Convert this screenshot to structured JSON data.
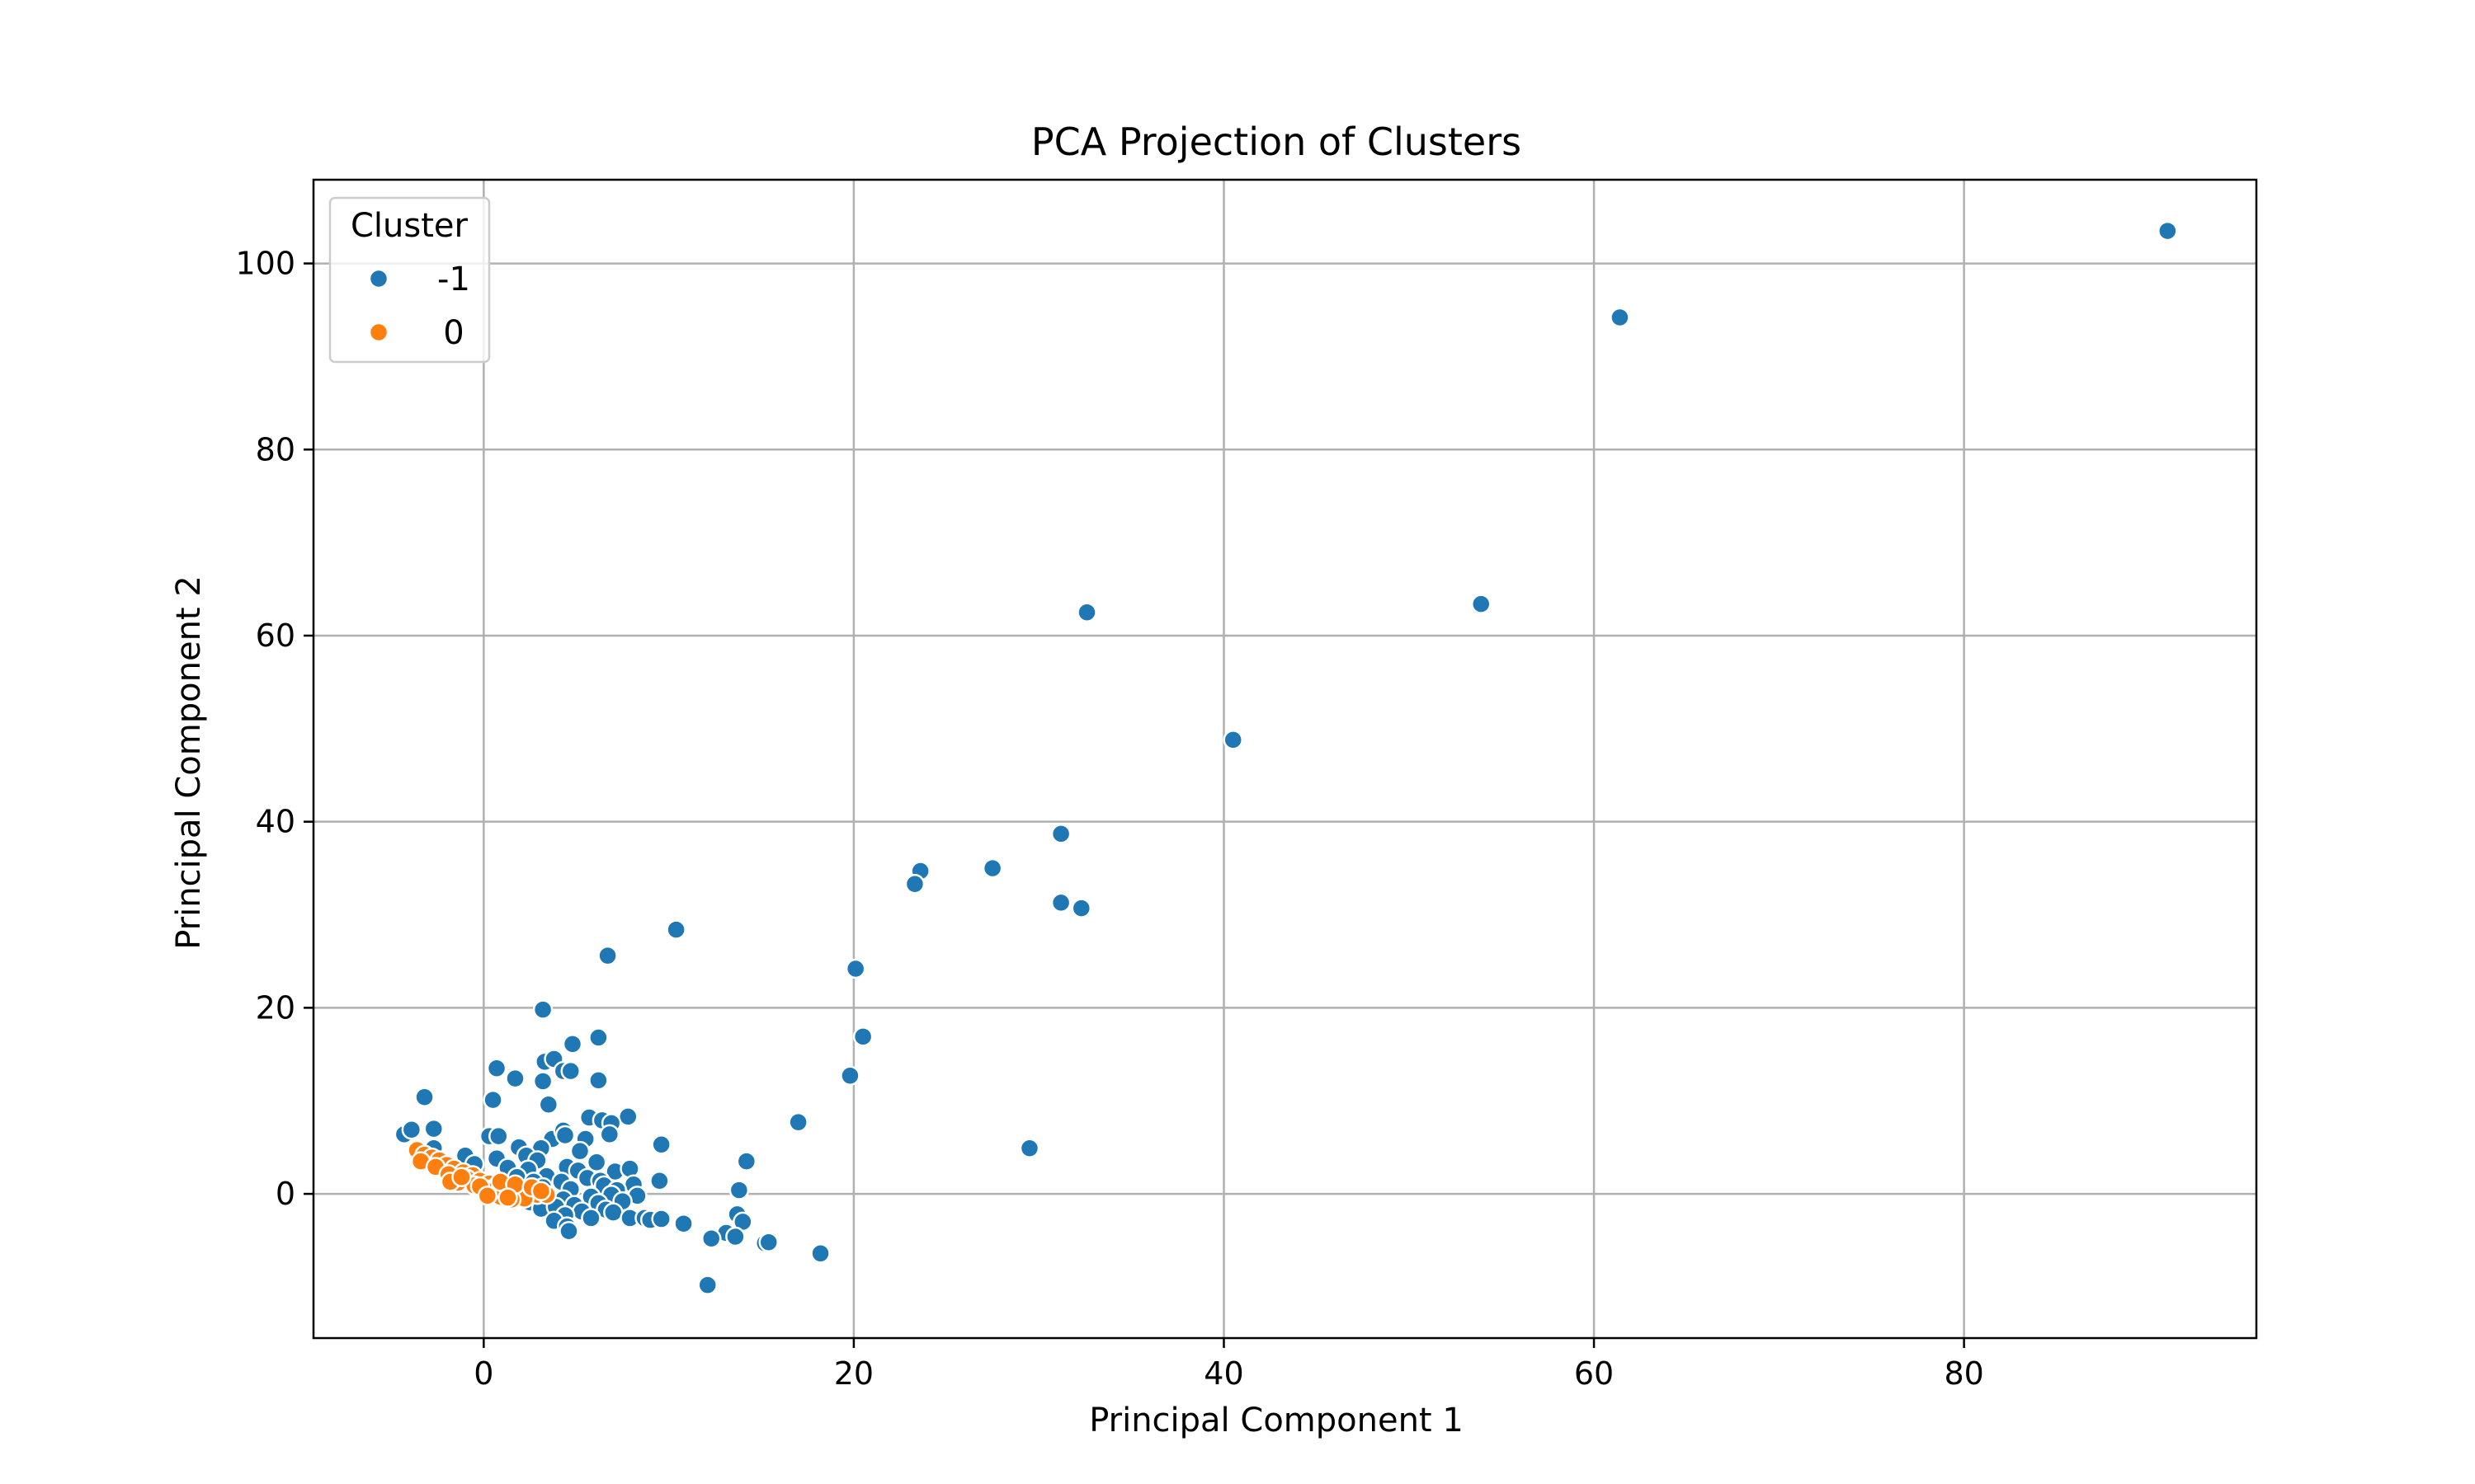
{
  "chart_data": {
    "type": "scatter",
    "title": "PCA Projection of Clusters",
    "xlabel": "Principal Component 1",
    "ylabel": "Principal Component 2",
    "xlim": [
      -9.2,
      95.8
    ],
    "ylim": [
      -15.5,
      109
    ],
    "xticks": [
      0,
      20,
      40,
      60,
      80
    ],
    "yticks": [
      0,
      20,
      40,
      60,
      80,
      100
    ],
    "grid": true,
    "legend": {
      "title": "Cluster",
      "position": "top-left"
    },
    "series": [
      {
        "name": "-1",
        "color": "#1f77b4",
        "points": [
          [
            91.0,
            103.5
          ],
          [
            61.4,
            94.2
          ],
          [
            53.9,
            63.4
          ],
          [
            32.6,
            62.5
          ],
          [
            40.5,
            48.8
          ],
          [
            31.2,
            38.7
          ],
          [
            27.5,
            35.0
          ],
          [
            23.6,
            34.7
          ],
          [
            23.3,
            33.3
          ],
          [
            31.2,
            31.3
          ],
          [
            32.3,
            30.7
          ],
          [
            10.4,
            28.4
          ],
          [
            6.7,
            25.6
          ],
          [
            20.1,
            24.2
          ],
          [
            3.2,
            19.8
          ],
          [
            20.5,
            16.9
          ],
          [
            6.2,
            16.8
          ],
          [
            4.8,
            16.1
          ],
          [
            3.3,
            14.2
          ],
          [
            3.8,
            14.5
          ],
          [
            0.7,
            13.5
          ],
          [
            4.3,
            13.2
          ],
          [
            4.7,
            13.2
          ],
          [
            1.7,
            12.4
          ],
          [
            3.2,
            12.1
          ],
          [
            6.2,
            12.2
          ],
          [
            19.8,
            12.7
          ],
          [
            -3.2,
            10.4
          ],
          [
            0.5,
            10.1
          ],
          [
            3.5,
            9.6
          ],
          [
            17.0,
            7.7
          ],
          [
            5.7,
            8.2
          ],
          [
            6.4,
            7.9
          ],
          [
            7.8,
            8.3
          ],
          [
            6.9,
            7.6
          ],
          [
            -2.7,
            7.0
          ],
          [
            -4.3,
            6.4
          ],
          [
            -3.9,
            6.9
          ],
          [
            0.3,
            6.2
          ],
          [
            0.8,
            6.2
          ],
          [
            3.7,
            5.9
          ],
          [
            4.3,
            6.8
          ],
          [
            4.4,
            6.3
          ],
          [
            5.5,
            5.9
          ],
          [
            6.8,
            6.4
          ],
          [
            9.6,
            5.3
          ],
          [
            29.5,
            4.9
          ],
          [
            -2.7,
            4.9
          ],
          [
            1.9,
            5.0
          ],
          [
            3.1,
            4.9
          ],
          [
            5.2,
            4.6
          ],
          [
            14.2,
            3.5
          ],
          [
            -1.0,
            4.1
          ],
          [
            0.7,
            3.8
          ],
          [
            2.3,
            4.1
          ],
          [
            2.9,
            3.6
          ],
          [
            6.1,
            3.4
          ],
          [
            4.5,
            2.9
          ],
          [
            -0.5,
            3.2
          ],
          [
            1.3,
            2.8
          ],
          [
            2.4,
            2.6
          ],
          [
            5.1,
            2.5
          ],
          [
            7.1,
            2.4
          ],
          [
            7.9,
            2.7
          ],
          [
            -1.8,
            1.5
          ],
          [
            1.8,
            1.8
          ],
          [
            3.4,
            1.9
          ],
          [
            5.6,
            1.7
          ],
          [
            6.3,
            1.4
          ],
          [
            9.5,
            1.4
          ],
          [
            -0.2,
            1.2
          ],
          [
            2.7,
            1.3
          ],
          [
            4.2,
            1.3
          ],
          [
            6.5,
            0.9
          ],
          [
            8.1,
            1.0
          ],
          [
            13.8,
            0.4
          ],
          [
            0.4,
            0.5
          ],
          [
            3.2,
            0.7
          ],
          [
            4.7,
            0.5
          ],
          [
            7.2,
            0.4
          ],
          [
            8.3,
            -0.2
          ],
          [
            1.5,
            -0.4
          ],
          [
            4.3,
            -0.6
          ],
          [
            5.8,
            -0.3
          ],
          [
            6.9,
            -0.1
          ],
          [
            2.5,
            -0.9
          ],
          [
            4.9,
            -1.2
          ],
          [
            6.2,
            -1.0
          ],
          [
            7.5,
            -0.8
          ],
          [
            3.1,
            -1.6
          ],
          [
            3.9,
            -1.4
          ],
          [
            5.3,
            -1.9
          ],
          [
            6.6,
            -1.7
          ],
          [
            7.0,
            -2.0
          ],
          [
            13.7,
            -2.2
          ],
          [
            4.4,
            -2.3
          ],
          [
            5.8,
            -2.6
          ],
          [
            7.9,
            -2.6
          ],
          [
            8.7,
            -2.6
          ],
          [
            9.0,
            -2.8
          ],
          [
            9.6,
            -2.7
          ],
          [
            3.8,
            -2.9
          ],
          [
            10.8,
            -3.2
          ],
          [
            14.0,
            -3.0
          ],
          [
            4.5,
            -3.5
          ],
          [
            4.6,
            -4.0
          ],
          [
            13.1,
            -4.2
          ],
          [
            12.3,
            -4.8
          ],
          [
            13.6,
            -4.6
          ],
          [
            15.2,
            -5.3
          ],
          [
            15.4,
            -5.2
          ],
          [
            18.2,
            -6.4
          ],
          [
            12.1,
            -9.8
          ]
        ]
      },
      {
        "name": "0",
        "color": "#ff7f0e",
        "points": [
          [
            -3.6,
            4.7
          ],
          [
            -3.2,
            4.2
          ],
          [
            -2.8,
            3.9
          ],
          [
            -3.4,
            3.5
          ],
          [
            -2.4,
            3.6
          ],
          [
            -2.0,
            3.1
          ],
          [
            -2.6,
            2.9
          ],
          [
            -1.6,
            2.7
          ],
          [
            -1.1,
            2.3
          ],
          [
            -1.9,
            2.1
          ],
          [
            -0.6,
            2.0
          ],
          [
            -0.9,
            1.6
          ],
          [
            -1.4,
            1.2
          ],
          [
            -0.2,
            1.4
          ],
          [
            0.3,
            1.1
          ],
          [
            -0.5,
            0.9
          ],
          [
            0.7,
            0.8
          ],
          [
            0.1,
            0.5
          ],
          [
            1.2,
            0.6
          ],
          [
            0.6,
            0.2
          ],
          [
            1.6,
            0.4
          ],
          [
            1.1,
            -0.1
          ],
          [
            2.1,
            0.2
          ],
          [
            0.9,
            -0.3
          ],
          [
            1.8,
            -0.2
          ],
          [
            2.5,
            0.1
          ],
          [
            2.9,
            -0.1
          ],
          [
            3.4,
            -0.1
          ],
          [
            2.2,
            -0.5
          ],
          [
            1.5,
            -0.6
          ],
          [
            0.4,
            0.3
          ],
          [
            -0.2,
            0.8
          ],
          [
            0.9,
            1.3
          ],
          [
            1.7,
            1.0
          ],
          [
            2.6,
            0.7
          ],
          [
            3.1,
            0.3
          ],
          [
            -1.8,
            1.3
          ],
          [
            -1.2,
            1.8
          ],
          [
            0.2,
            -0.2
          ],
          [
            1.3,
            -0.4
          ]
        ]
      }
    ]
  }
}
